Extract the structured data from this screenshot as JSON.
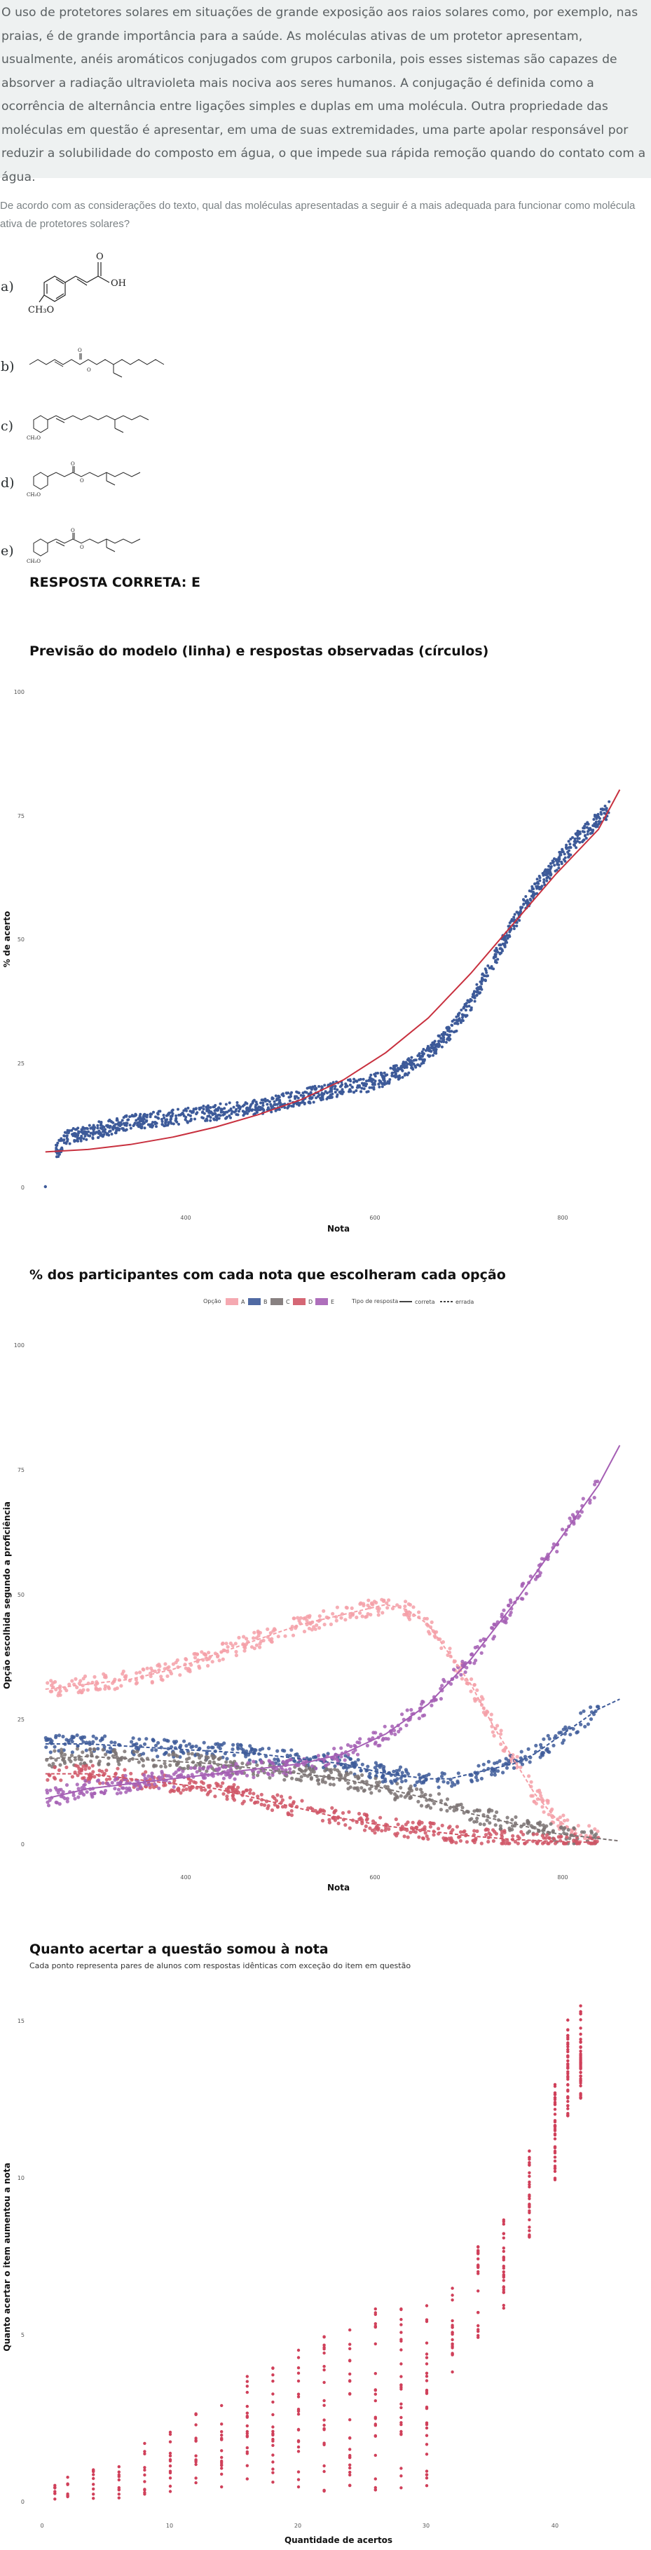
{
  "question": {
    "text": "O uso de protetores solares em situações de grande exposição aos raios solares como, por exemplo, nas praias, é de grande importância para a saúde. As moléculas ativas de um protetor apresentam, usualmente, anéis aromáticos conjugados com grupos carbonila, pois esses sistemas são capazes de absorver a radiação ultravioleta mais nociva aos seres humanos. A conjugação é definida como a ocorrência de alternância entre ligações simples e duplas em uma molécula. Outra propriedade das moléculas em questão é apresentar, em uma de suas extremidades, uma parte apolar responsável por reduzir a solubilidade do composto em água, o que impede sua rápida remoção quando do contato com a água.",
    "prompt": "De acordo com as considerações do texto, qual das moléculas apresentadas a seguir é a mais adequada para funcionar como molécula ativa de protetores solares?",
    "options": [
      {
        "letter": "a)",
        "labels": [
          "O",
          "OH",
          "CH₃O"
        ]
      },
      {
        "letter": "b)",
        "labels": [
          "O",
          "O"
        ]
      },
      {
        "letter": "c)",
        "labels": [
          "CH₃O"
        ]
      },
      {
        "letter": "d)",
        "labels": [
          "O",
          "O",
          "CH₃O"
        ]
      },
      {
        "letter": "e)",
        "labels": [
          "O",
          "O",
          "CH₃O"
        ]
      }
    ],
    "answer": "RESPOSTA CORRETA: E"
  },
  "charts": {
    "c1": {
      "title": "Previsão do modelo (linha) e respostas observadas (círculos)",
      "ylabel": "% de acerto",
      "xlabel": "Nota",
      "yticks": [
        "100",
        "75",
        "50",
        "25",
        "0"
      ],
      "xticks": [
        "400",
        "600",
        "800"
      ]
    },
    "c2": {
      "title": "% dos participantes com cada nota que escolheram cada opção",
      "ylabel": "Opção escolhida segundo a proficiência",
      "xlabel": "Nota",
      "yticks": [
        "100",
        "75",
        "50",
        "25",
        "0"
      ],
      "xticks": [
        "400",
        "600",
        "800"
      ],
      "legend": {
        "option_title": "Opção",
        "options": [
          "A",
          "B",
          "C",
          "D",
          "E"
        ],
        "type_title": "Tipo de resposta",
        "types": [
          "correta",
          "errada"
        ]
      }
    },
    "c3": {
      "title": "Quanto acertar a questão somou à nota",
      "subtitle": "Cada ponto representa pares de alunos com respostas idênticas com exceção do item em questão",
      "ylabel": "Quanto acertar o item aumentou a nota",
      "xlabel": "Quantidade de acertos",
      "yticks": [
        "15",
        "10",
        "5",
        "0"
      ],
      "xticks": [
        "0",
        "10",
        "20",
        "30",
        "40"
      ]
    }
  },
  "chart_data": [
    {
      "type": "scatter",
      "title": "Previsão do modelo (linha) e respostas observadas (círculos)",
      "xlabel": "Nota",
      "ylabel": "% de acerto",
      "xlim": [
        305,
        865
      ],
      "ylim": [
        0,
        100
      ],
      "observed": [
        [
          320,
          0
        ],
        [
          330,
          7
        ],
        [
          340,
          10
        ],
        [
          360,
          11
        ],
        [
          380,
          12
        ],
        [
          400,
          13
        ],
        [
          420,
          13.5
        ],
        [
          440,
          14
        ],
        [
          460,
          14.5
        ],
        [
          480,
          15
        ],
        [
          500,
          15.5
        ],
        [
          520,
          16
        ],
        [
          540,
          17
        ],
        [
          560,
          18
        ],
        [
          580,
          19
        ],
        [
          600,
          20
        ],
        [
          620,
          20.5
        ],
        [
          640,
          22
        ],
        [
          660,
          24
        ],
        [
          680,
          27
        ],
        [
          700,
          31
        ],
        [
          720,
          37
        ],
        [
          740,
          45
        ],
        [
          760,
          53
        ],
        [
          780,
          60
        ],
        [
          800,
          65
        ],
        [
          820,
          70
        ],
        [
          840,
          74
        ],
        [
          850,
          76
        ]
      ],
      "model": [
        [
          320,
          7
        ],
        [
          360,
          7.5
        ],
        [
          400,
          8.5
        ],
        [
          440,
          10
        ],
        [
          480,
          12
        ],
        [
          520,
          14.5
        ],
        [
          560,
          17.5
        ],
        [
          600,
          21.5
        ],
        [
          640,
          27
        ],
        [
          680,
          34
        ],
        [
          720,
          43
        ],
        [
          760,
          53
        ],
        [
          800,
          63
        ],
        [
          840,
          72
        ],
        [
          860,
          80
        ]
      ],
      "colors": {
        "points": "#3d5a99",
        "line": "#c8303e"
      }
    },
    {
      "type": "scatter",
      "title": "% dos participantes com cada nota que escolheram cada opção",
      "xlabel": "Nota",
      "ylabel": "Opção escolhida segundo a proficiência",
      "xlim": [
        305,
        865
      ],
      "ylim": [
        0,
        100
      ],
      "legend_position": "top",
      "series": [
        {
          "name": "A",
          "correct": false,
          "color": "#f4a0a8",
          "points": [
            [
              320,
              31
            ],
            [
              360,
              32
            ],
            [
              400,
              33
            ],
            [
              440,
              35
            ],
            [
              480,
              38
            ],
            [
              520,
              41
            ],
            [
              560,
              44
            ],
            [
              600,
              46
            ],
            [
              640,
              48
            ],
            [
              660,
              47
            ],
            [
              680,
              44
            ],
            [
              700,
              38
            ],
            [
              720,
              32
            ],
            [
              740,
              24
            ],
            [
              760,
              17
            ],
            [
              780,
              10
            ],
            [
              800,
              5
            ],
            [
              820,
              2
            ]
          ]
        },
        {
          "name": "B",
          "correct": false,
          "color": "#3d5a99",
          "points": [
            [
              320,
              20
            ],
            [
              360,
              20
            ],
            [
              400,
              19.5
            ],
            [
              440,
              19
            ],
            [
              480,
              18.5
            ],
            [
              520,
              18
            ],
            [
              560,
              17
            ],
            [
              600,
              16
            ],
            [
              640,
              14
            ],
            [
              680,
              13
            ],
            [
              700,
              13
            ],
            [
              720,
              14
            ],
            [
              740,
              15
            ],
            [
              760,
              16
            ],
            [
              780,
              18
            ],
            [
              800,
              21
            ],
            [
              820,
              24
            ],
            [
              840,
              27
            ],
            [
              860,
              29
            ]
          ]
        },
        {
          "name": "C",
          "correct": false,
          "color": "#7b7373",
          "points": [
            [
              320,
              17
            ],
            [
              360,
              17.5
            ],
            [
              400,
              17
            ],
            [
              440,
              16.5
            ],
            [
              480,
              16
            ],
            [
              520,
              15
            ],
            [
              560,
              14
            ],
            [
              600,
              13
            ],
            [
              640,
              11
            ],
            [
              680,
              9
            ],
            [
              720,
              6
            ],
            [
              760,
              4
            ],
            [
              800,
              2
            ],
            [
              840,
              1
            ],
            [
              860,
              0.5
            ]
          ]
        },
        {
          "name": "D",
          "correct": false,
          "color": "#d05666",
          "points": [
            [
              320,
              14
            ],
            [
              360,
              14
            ],
            [
              400,
              13
            ],
            [
              440,
              12
            ],
            [
              480,
              11
            ],
            [
              520,
              9
            ],
            [
              560,
              7
            ],
            [
              600,
              5
            ],
            [
              640,
              3.5
            ],
            [
              680,
              2.5
            ],
            [
              720,
              1.5
            ],
            [
              760,
              0.8
            ],
            [
              800,
              0.4
            ],
            [
              840,
              0.2
            ]
          ]
        },
        {
          "name": "E",
          "correct": true,
          "color": "#a55fb4",
          "points": [
            [
              320,
              9
            ],
            [
              360,
              11
            ],
            [
              400,
              12
            ],
            [
              440,
              13
            ],
            [
              480,
              14
            ],
            [
              520,
              15
            ],
            [
              560,
              16
            ],
            [
              600,
              18
            ],
            [
              640,
              22
            ],
            [
              680,
              28
            ],
            [
              720,
              37
            ],
            [
              760,
              48
            ],
            [
              800,
              60
            ],
            [
              840,
              72
            ],
            [
              860,
              80
            ]
          ]
        }
      ]
    },
    {
      "type": "scatter",
      "title": "Quanto acertar a questão somou à nota",
      "subtitle": "Cada ponto representa pares de alunos com respostas idênticas com exceção do item em questão",
      "xlabel": "Quantidade de acertos",
      "ylabel": "Quanto acertar o item aumentou a nota",
      "xlim": [
        -1,
        46
      ],
      "ylim": [
        -0.5,
        16
      ],
      "points_summary": [
        [
          1,
          0.5
        ],
        [
          2,
          0.8
        ],
        [
          4,
          1
        ],
        [
          6,
          1.4
        ],
        [
          8,
          1.8
        ],
        [
          10,
          2.2
        ],
        [
          12,
          2.8
        ],
        [
          14,
          3.3
        ],
        [
          16,
          3.9
        ],
        [
          18,
          4.4
        ],
        [
          20,
          4.8
        ],
        [
          22,
          5.2
        ],
        [
          24,
          5.6
        ],
        [
          26,
          6
        ],
        [
          28,
          6.2
        ],
        [
          30,
          6.5
        ],
        [
          32,
          7
        ],
        [
          34,
          8
        ],
        [
          36,
          9
        ],
        [
          38,
          11
        ],
        [
          40,
          13
        ],
        [
          41,
          15
        ],
        [
          42,
          15.5
        ]
      ],
      "color": "#d0405a"
    }
  ]
}
